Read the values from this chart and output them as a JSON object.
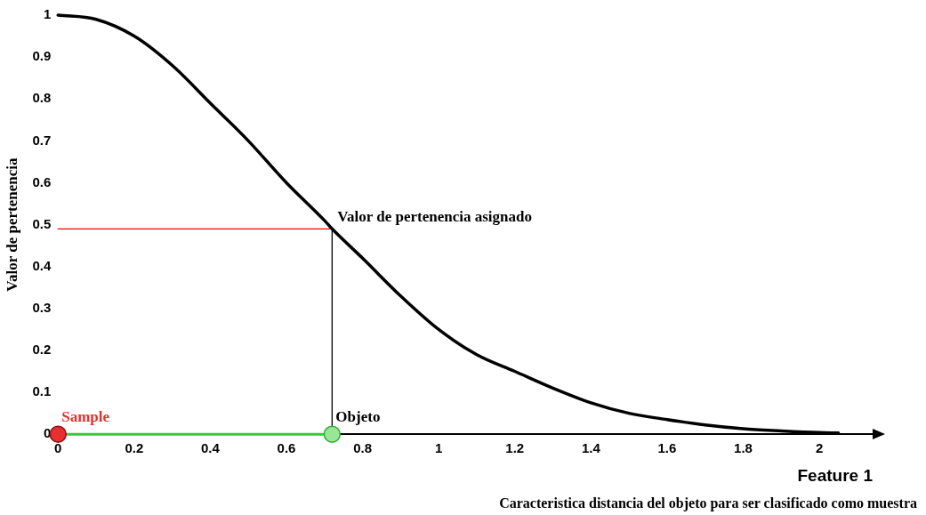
{
  "chart_data": {
    "type": "line",
    "xlabel": "Feature 1",
    "ylabel": "Valor de pertenencia",
    "xlim": [
      0,
      2.14
    ],
    "xticks": [
      0,
      0.2,
      0.4,
      0.6,
      0.8,
      1,
      1.2,
      1.4,
      1.6,
      1.8,
      2
    ],
    "ylim": [
      0,
      1
    ],
    "yticks": [
      0,
      0.1,
      0.2,
      0.3,
      0.4,
      0.5,
      0.6,
      0.7,
      0.8,
      0.9,
      1
    ],
    "grid": false,
    "legend": false,
    "marker": "none",
    "line_style": "solid",
    "annotations": [
      {
        "text": "Valor de pertenencia asignado",
        "x": 0.72,
        "y": 0.49
      },
      "Caracteristica distancia del objeto para ser clasificado como muestra"
    ],
    "series": [
      {
        "color": "#000000",
        "x": [
          0,
          0.1,
          0.2,
          0.3,
          0.4,
          0.5,
          0.6,
          0.7,
          0.72,
          0.8,
          0.9,
          1,
          1.1,
          1.2,
          1.3,
          1.4,
          1.5,
          1.6,
          1.7,
          1.8,
          1.9,
          2,
          2.05
        ],
        "values": [
          1,
          0.99,
          0.95,
          0.88,
          0.79,
          0.7,
          0.6,
          0.51,
          0.49,
          0.42,
          0.33,
          0.25,
          0.19,
          0.15,
          0.11,
          0.075,
          0.05,
          0.035,
          0.022,
          0.013,
          0.008,
          0.004,
          0.003
        ]
      },
      {
        "type": "line",
        "color": "#ff0000",
        "x": [
          0,
          0.72
        ],
        "values": [
          0.49,
          0.49
        ]
      },
      {
        "type": "line",
        "color": "#000000",
        "x": [
          0.72,
          0.72
        ],
        "values": [
          0,
          0.49
        ]
      },
      {
        "type": "line",
        "color": "#33cc33",
        "x": [
          0,
          0.72
        ],
        "values": [
          0,
          0
        ]
      },
      {
        "type": "scatter",
        "name": "Sample",
        "color": "#e83030",
        "marker": "circle",
        "x": [
          0
        ],
        "values": [
          0
        ]
      },
      {
        "type": "scatter",
        "name": "Objeto",
        "color": "#99e699",
        "marker": "circle",
        "x": [
          0.72
        ],
        "values": [
          0
        ]
      }
    ]
  }
}
